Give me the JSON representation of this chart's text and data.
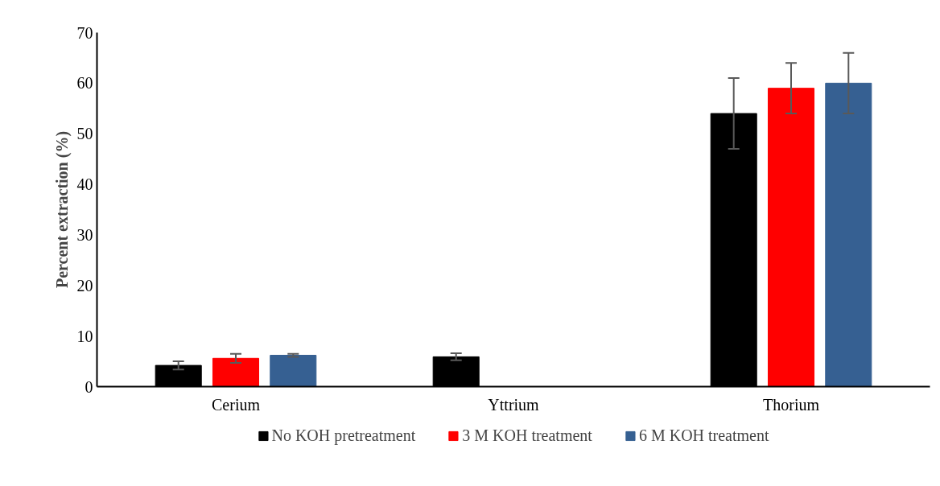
{
  "chart_data": {
    "type": "bar",
    "ylabel": "Percent extraction (%)",
    "categories": [
      "Cerium",
      "Yttrium",
      "Thorium"
    ],
    "series": [
      {
        "name": "No KOH pretreatment",
        "color": "#000000",
        "values": [
          4.2,
          5.9,
          54
        ],
        "errors": [
          0.8,
          0.7,
          7
        ]
      },
      {
        "name": "3 M KOH treatment",
        "color": "#ff0000",
        "values": [
          5.6,
          0,
          59
        ],
        "errors": [
          0.9,
          null,
          5
        ]
      },
      {
        "name": "6 M KOH treatment",
        "color": "#366092",
        "values": [
          6.2,
          0,
          60
        ],
        "errors": [
          0.3,
          null,
          6
        ]
      }
    ],
    "ylim": [
      0,
      70
    ],
    "yticks": [
      0,
      10,
      20,
      30,
      40,
      50,
      60,
      70
    ],
    "grid": false,
    "legend": "bottom"
  }
}
